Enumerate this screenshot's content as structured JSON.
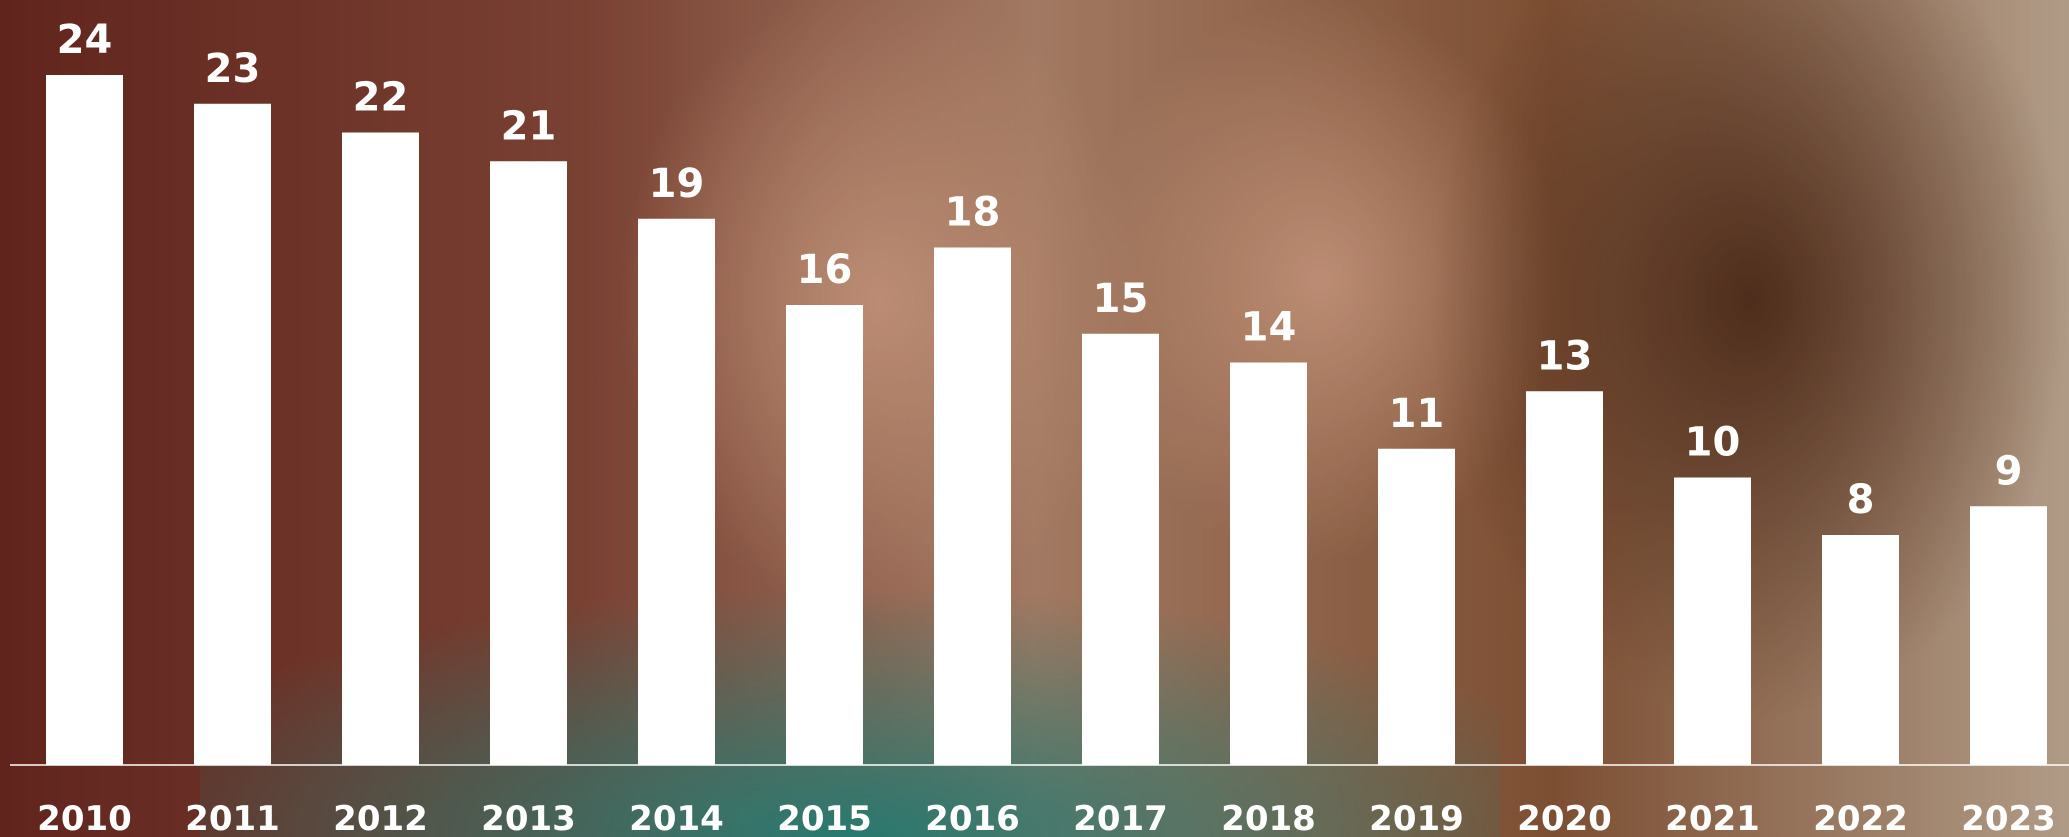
{
  "chart_data": {
    "type": "bar",
    "categories": [
      "2010",
      "2011",
      "2012",
      "2013",
      "2014",
      "2015",
      "2016",
      "2017",
      "2018",
      "2019",
      "2020",
      "2021",
      "2022",
      "2023"
    ],
    "values": [
      24,
      23,
      22,
      21,
      19,
      16,
      18,
      15,
      14,
      11,
      13,
      10,
      8,
      9
    ],
    "color": "#ffffff",
    "ylim": [
      0,
      24
    ]
  }
}
